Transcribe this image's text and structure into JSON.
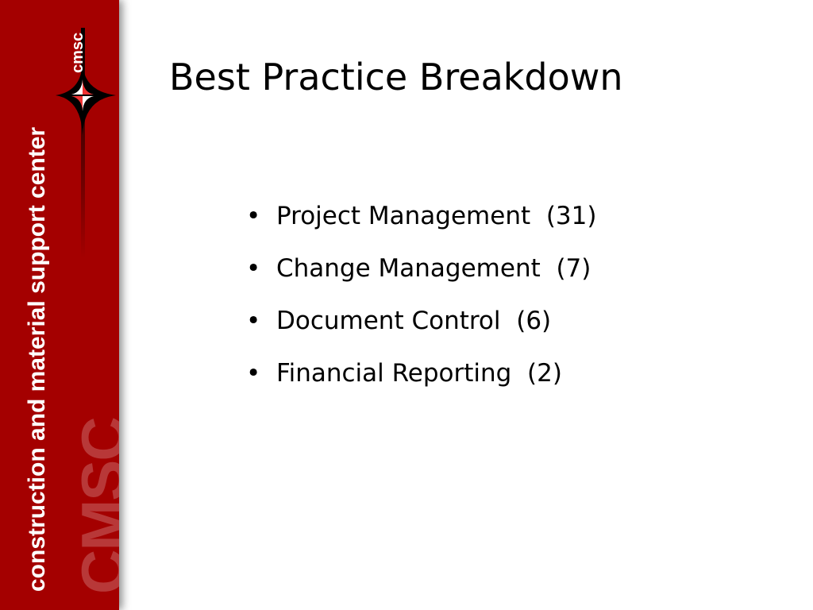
{
  "sidebar": {
    "vertical_text": "construction and material support center",
    "watermark": "CMSC",
    "logo_text": "cmsc",
    "color": "#a40000"
  },
  "slide": {
    "title": "Best Practice Breakdown",
    "bullets": [
      "Project Management  (31)",
      "Change Management  (7)",
      "Document Control  (6)",
      "Financial Reporting  (2)"
    ],
    "bullet_glyph": "•"
  }
}
